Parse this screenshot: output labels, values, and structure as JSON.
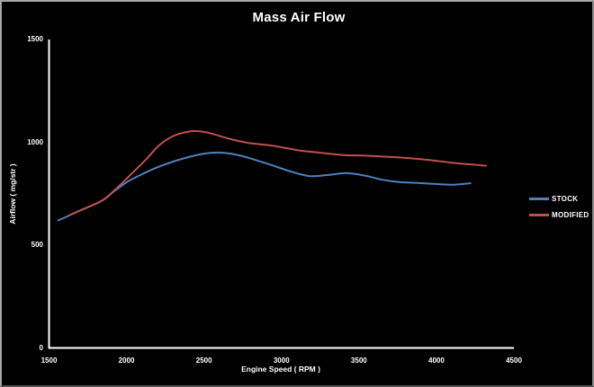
{
  "chart_data": {
    "type": "line",
    "title": "Mass Air Flow",
    "xlabel": "Engine Speed ( RPM )",
    "ylabel": "Airflow ( mg/str )",
    "xlim": [
      1500,
      4500
    ],
    "ylim": [
      0,
      1500
    ],
    "x_ticks": [
      1500,
      2000,
      2500,
      3000,
      3500,
      4000,
      4500
    ],
    "y_ticks": [
      0,
      500,
      1000,
      1500
    ],
    "grid": false,
    "legend_position": "right-middle",
    "colors": {
      "background": "#000000",
      "text": "#ffffff",
      "axis": "#ffffff",
      "stock": "#4f81bd",
      "modified": "#c0504d",
      "frame_border": "#a6a6a6"
    },
    "series": [
      {
        "name": "STOCK",
        "color": "#4f81bd",
        "points": [
          [
            1560,
            620
          ],
          [
            1700,
            668
          ],
          [
            1840,
            715
          ],
          [
            1920,
            762
          ],
          [
            2010,
            810
          ],
          [
            2100,
            845
          ],
          [
            2190,
            876
          ],
          [
            2300,
            906
          ],
          [
            2400,
            928
          ],
          [
            2500,
            945
          ],
          [
            2600,
            950
          ],
          [
            2700,
            941
          ],
          [
            2800,
            922
          ],
          [
            2940,
            888
          ],
          [
            3060,
            858
          ],
          [
            3180,
            836
          ],
          [
            3300,
            841
          ],
          [
            3420,
            850
          ],
          [
            3540,
            838
          ],
          [
            3650,
            818
          ],
          [
            3760,
            807
          ],
          [
            3870,
            803
          ],
          [
            3980,
            798
          ],
          [
            4100,
            794
          ],
          [
            4220,
            801
          ]
        ]
      },
      {
        "name": "MODIFIED",
        "color": "#c0504d",
        "points": [
          [
            1630,
            645
          ],
          [
            1710,
            672
          ],
          [
            1840,
            716
          ],
          [
            1920,
            765
          ],
          [
            2010,
            830
          ],
          [
            2130,
            920
          ],
          [
            2210,
            985
          ],
          [
            2300,
            1030
          ],
          [
            2400,
            1052
          ],
          [
            2480,
            1053
          ],
          [
            2560,
            1040
          ],
          [
            2660,
            1018
          ],
          [
            2780,
            998
          ],
          [
            2940,
            984
          ],
          [
            3100,
            962
          ],
          [
            3220,
            952
          ],
          [
            3400,
            938
          ],
          [
            3520,
            936
          ],
          [
            3700,
            929
          ],
          [
            3840,
            922
          ],
          [
            3980,
            912
          ],
          [
            4120,
            899
          ],
          [
            4230,
            892
          ],
          [
            4320,
            886
          ]
        ]
      }
    ]
  }
}
